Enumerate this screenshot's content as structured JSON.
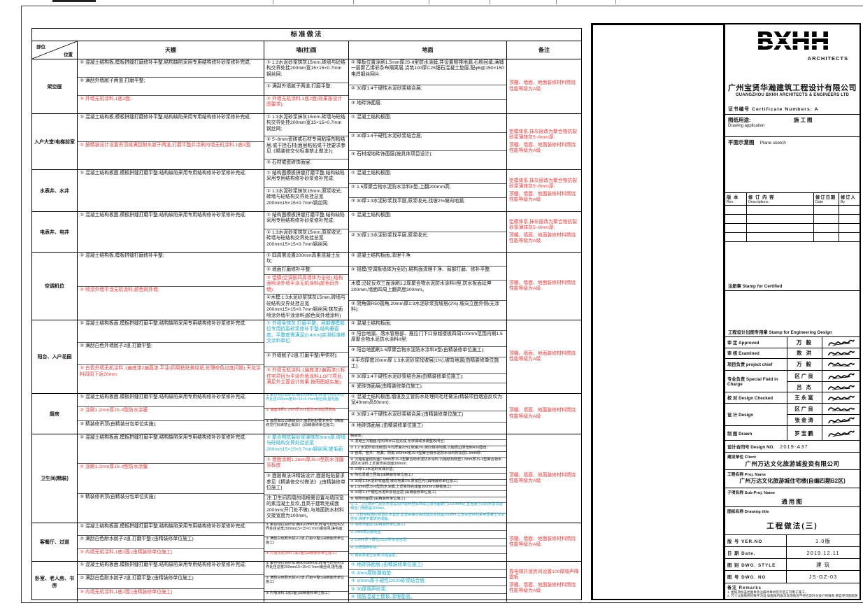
{
  "sheet": {
    "table_title": "标准做法",
    "corner_top": "部位",
    "corner_bottom": "位置",
    "columns": [
      "部位/位置",
      "天棚",
      "墙(柱)面",
      "地面",
      "备注"
    ],
    "rows": [
      {
        "location": "架空层",
        "ceiling": [
          {
            "c": "k",
            "t": "① 混凝土结构板,模板拼缝打磨修补平整,结构缺陷采用专用结构修补砂浆修补完成;"
          },
          {
            "c": "k",
            "t": "② 满刮外墙腻子两道,打磨平整;"
          },
          {
            "c": "r",
            "t": "③ 外墙无机涂料,1底2面;"
          }
        ],
        "wall": [
          {
            "c": "k",
            "t": "① 1:3水泥砂浆抹灰15mm,砖墙与砼结构交界处挂200mm宽15×15×0.7mm钢丝网;"
          },
          {
            "c": "k",
            "t": "② 满刮外墙腻子两道,打磨平整;"
          },
          {
            "c": "r",
            "t": "③ 外墙无机涂料,1底2面(效果按设计图要求);"
          }
        ],
        "floor": [
          {
            "c": "k",
            "t": "① 降板位置涂刷1.5mm厚JS-II型防水涂膜,并设置侧排地漏,石粉回填,满铺一层聚乙烯彩条布隔离层,浇筑100厚C25细石混凝土垫层,配φ6@150×150电焊钢丝网片;"
          },
          {
            "c": "k",
            "t": "② 30厚1:4干硬性水泥砂浆结合层;"
          },
          {
            "c": "k",
            "t": "③ 地砖饰面层;"
          }
        ],
        "remarks": [
          {
            "c": "r",
            "t": "顶棚、墙面、地面装修材料燃烧性能等级为A级"
          }
        ]
      },
      {
        "location": "入户大堂/电梯前室",
        "ceiling": [
          {
            "c": "k",
            "t": "① 混凝土结构板,模板拼缝打磨修补平整,结构缺陷采用专用结构修补砂浆修补完成;"
          },
          {
            "c": "r",
            "t": "② 按精装设计设置吊顶或满刮耐水腻子两道,打磨平整并涂刷内墙无机涂料,1底2面;"
          }
        ],
        "wall": [
          {
            "c": "k",
            "t": "① 1:3水泥砂浆抹灰15mm,砖墙与砼结构交界处挂200mm宽15×15×0.7mm钢丝网;"
          },
          {
            "c": "k",
            "t": "② 5~8mm瓷砖或石材专用粘接剂粘结层,或干挂石材(面层粘贴或干挂要求参见《精装修交付标准禁止做法》);"
          },
          {
            "c": "k",
            "t": "③ 石材或瓷砖饰面层;"
          }
        ],
        "floor": [
          {
            "c": "k",
            "t": "① 混凝土结构板面;"
          },
          {
            "c": "k",
            "t": "② 30厚1:4干硬性水泥砂浆结合层;"
          },
          {
            "c": "k",
            "t": "③ 石材或地砖饰面层(按具体项目设计);"
          }
        ],
        "remarks": [
          {
            "c": "r",
            "t": "铝模体系,抹灰层改为聚合物抗裂砂浆薄抹灰5~8mm厚;"
          },
          {
            "c": "r",
            "t": "顶棚、墙面、地面装修材料燃烧性能等级为A级"
          }
        ]
      },
      {
        "location": "水表井、水井",
        "ceiling": [
          {
            "c": "k",
            "t": "① 混凝土结构板面,模板拼缝打磨平整,结构缺陷采用专用结构修补砂浆修补完成;"
          }
        ],
        "wall": [
          {
            "c": "k",
            "t": "① 结构面模板拼缝打磨平整,结构缺陷采用专用结构修补砂浆修补完成;"
          },
          {
            "c": "k",
            "t": "② 1:3水泥砂浆抹灰15mm,原浆收光;砖墙与砼结构交界处挂总宽200mm15×15×0.7mm钢丝网;"
          }
        ],
        "floor": [
          {
            "c": "k",
            "t": "① 混凝土结构板面;"
          },
          {
            "c": "k",
            "t": "② 1.5厚聚合物水泥防水涂料II型,上翻200mm高;"
          },
          {
            "c": "k",
            "t": "③ 30厚1:3水泥砂浆找平层,原浆收光,找坡2%坡向地漏;"
          }
        ],
        "remarks": [
          {
            "c": "r",
            "t": "铝模体系,抹灰层改为聚合物抗裂砂浆薄抹灰5~8mm厚;"
          },
          {
            "c": "r",
            "t": "顶棚、墙面、地面装修材料燃烧性能等级为A级"
          }
        ]
      },
      {
        "location": "电表井、电井",
        "ceiling": [
          {
            "c": "k",
            "t": "① 混凝土结构板面,模板拼缝打磨平整,结构缺陷采用专用结构修补砂浆修补完成;"
          }
        ],
        "wall": [
          {
            "c": "k",
            "t": "① 结构面模板拼缝打磨平整,结构缺陷采用专用结构修补砂浆修补完成;"
          },
          {
            "c": "k",
            "t": "② 1:3水泥砂浆抹灰15mm,原浆收光;砖墙与砼结构交界处挂总宽200mm15×15×0.7mm钢丝网;"
          }
        ],
        "floor": [
          {
            "c": "k",
            "t": "① 混凝土结构板面;"
          },
          {
            "c": "k",
            "t": "② 30厚1:3水泥砂浆找平层,原浆收光;"
          }
        ],
        "remarks": [
          {
            "c": "r",
            "t": "铝模体系,抹灰层改为聚合物抗裂砂浆薄抹灰5~8mm厚;"
          },
          {
            "c": "r",
            "t": "顶棚、墙面、地面装修材料燃烧性能等级为A级"
          }
        ]
      },
      {
        "location": "空调机位",
        "ceiling": [
          {
            "c": "k",
            "t": "① 混凝土结构板,模板拼缝打磨修补平整;"
          },
          {
            "c": "r",
            "t": "② 喷涂外墙平涂无机涂料,颜色同外墙;"
          }
        ],
        "wall": [
          {
            "c": "k",
            "t": "① 四周需设置200mm高素混凝土反坎;"
          },
          {
            "c": "k",
            "t": "② 墙面打磨修补平整;"
          },
          {
            "c": "r",
            "t": "③ 铝模(空调板四周墙体为全砼),结构面喷涂外墙平涂无机涂料(颜色同外墙);"
          },
          {
            "c": "k",
            "t": "④木模:1:3水泥砂浆抹灰15mm,砖墙与砼结构交界处挂总宽200mm15×15×0.7mm钢丝网;抹灰面喷涂外墙平涂涂料(颜色同外墙涂料)"
          }
        ],
        "floor": [
          {
            "c": "k",
            "t": "① 混凝土结构板面,清理干净;"
          },
          {
            "c": "k",
            "t": "② 铝模(空调板墙体为全砼),结构面清理干净、局部打磨、修补平整;"
          },
          {
            "c": "k",
            "t": "木模:沿砼反坎三面涂刷1.2厚聚合物水泥防水涂料II型,防水板面延伸200mm,墙面四周上翻高度300mm。"
          },
          {
            "c": "k",
            "t": "③ 阴角做R50圆角,20mm厚1:3水泥砂浆找坡层(2%),坡向立面外侧(无涂料);"
          }
        ],
        "remarks": [
          {
            "c": "r",
            "t": "顶棚、墙面、地面装修材料燃烧性能等级为A级"
          }
        ]
      },
      {
        "location": "阳台、入户花园",
        "ceiling": [
          {
            "c": "k",
            "t": "① 混凝土结构板面,模板拼缝打磨平整,结构缺陷采用专用结构修补砂浆修补完成;"
          },
          {
            "c": "k",
            "t": "② 满刮白色外墙腻子2道,打磨平整;"
          },
          {
            "c": "r",
            "t": "③ 白色外墙无机涂料,1遍底漆2遍面漆,平涂(四周粘贴美纹纸,处理咬色过度问题),天花涂料四周下返20mm;"
          }
        ],
        "wall": [
          {
            "c": "b",
            "t": "① 外墙免抹灰,打磨平整、局部爆模部位专用抗裂砂浆修补平整,结构垂直度、平整度需满足[0,4mm]实测标准移交涂料单位;"
          },
          {
            "c": "k",
            "t": "② 外墙腻子2道,打磨平整(甲供材);"
          },
          {
            "c": "r",
            "t": "③ 外墙无机涂料,1遍底漆2遍面漆(C标住宅项目为平涂外墙涂料,LOFT项目,满足外立面设计效果,按照图纸实施);"
          }
        ],
        "floor": [
          {
            "c": "k",
            "t": "① 混凝土结构板面;"
          },
          {
            "c": "k",
            "t": "② 阳台地漏、落水管根部、推拉门下口穿越楼板四周100mm范围内刷1.5厚聚合物水泥防水涂料II型;"
          },
          {
            "c": "k",
            "t": "③ 阳台地面刷1.5厚聚合物水泥防水涂料II型(由精装修单位施工);"
          },
          {
            "c": "k",
            "t": "④平均厚度20mm厚 1:3水泥砂浆找坡层(1%),坡向地漏(由精装修单位施工);"
          },
          {
            "c": "k",
            "t": "⑤ 30厚1:4干硬性水泥砂浆结合层(由精装修单位施工);"
          },
          {
            "c": "k",
            "t": "⑥ 瓷砖饰面层(由精装修单位施工);"
          }
        ],
        "remarks": [
          {
            "c": "r",
            "t": "顶棚、墙面、地面装修材料燃烧性能等级为A级"
          }
        ]
      },
      {
        "location": "厨房",
        "ceiling": [
          {
            "c": "k",
            "t": "① 混凝土结构板面,模板拼缝打磨平整,结构缺陷采用专用结构修补砂浆修补完成;"
          },
          {
            "c": "r",
            "t": "② 涂刷1.2mm厚JS-II型防水涂膜"
          },
          {
            "c": "k",
            "t": "③ 精装修吊顶(由精装分包单位实施);"
          }
        ],
        "wall": [
          {
            "c": "b",
            "t": "① 聚合物抗裂砂浆薄抹灰8mm厚,砖墙与砼结构交界处挂200mm宽15×15×0.7mm钢丝网,搓毛面;"
          },
          {
            "c": "r",
            "t": "② 墙面涂刷1.2mm厚JS-II型防水涂膜至板底"
          },
          {
            "c": "k",
            "t": "③ 面层做法详精装设计,面层粘贴要求参见《精装修交付标准禁止做法》;(由精装修单位施工)"
          }
        ],
        "floor": [
          {
            "c": "k",
            "t": "① 混凝土结构板面,烟道及立管防水处理同毛坯做法(精装项目烟道反坎为:宽40mm高50mm);"
          },
          {
            "c": "k",
            "t": "② 30厚1:4干硬性水泥砂浆结合层;(由精装修单位施工)"
          },
          {
            "c": "k",
            "t": "③ 地砖饰面层;(由精装修单位施工)"
          }
        ],
        "remarks": [
          {
            "c": "r",
            "t": "顶棚、墙面、地面装修材料燃烧性能等级为A级"
          }
        ]
      },
      {
        "location": "卫生间(精装)",
        "ceiling": [
          {
            "c": "k",
            "t": "① 混凝土结构板面,模板拼缝打磨平整,结构缺陷采用专用结构修补砂浆修补完成;"
          },
          {
            "c": "r",
            "t": "② 涂刷1.2mm厚JS-II型防水涂膜"
          },
          {
            "c": "k",
            "t": "③ 精装修吊顶(由精装分包单位实施);"
          }
        ],
        "wall": [
          {
            "c": "b",
            "t": "① 聚合物抗裂砂浆薄抹灰8mm厚,砖墙与砼结构交界处挂总宽200mm15×15×0.7mm钢丝网,搓毛面;"
          },
          {
            "c": "r",
            "t": "② 墙面涂刷1.2mm厚JS-II型防水涂膜至板底"
          },
          {
            "c": "k",
            "t": "③ 面层做法详精装设计,面层粘贴要求参见《精装修交付做法》;(由精装修单位施工)"
          },
          {
            "c": "k",
            "t": "注:卫生间四周的墙根需设置与墙同宽的素混凝土反坎,且高于建筑完成面200mm(开门处不做),与地面防水材料交接宽度为100mm。"
          }
        ],
        "floor": [
          {
            "c": "k",
            "t": "精装修。"
          },
          {
            "c": "k",
            "t": "① 混凝土沉箱面,结构闭水试验完成,无渗漏或渗漏整改闭合;"
          },
          {
            "c": "k",
            "t": "② 1:2 水泥砂浆找坡层(平均厚度2cm),坡度2%,坡向侧排地漏,沉箱周边阴角倒R50圆角;"
          },
          {
            "c": "k",
            "t": "③ 管周、管井、地漏、阴角,300mm宽JS-II型聚合物水泥防水涂料附加层1.5mm厚;"
          },
          {
            "c": "k",
            "t": "④ 沉箱底面结构面1.5mm厚JS-II型聚合物水泥防水涂料;沉箱结构侧壁1.5mm厚JS-II型聚合物水泥防水涂料上反装饰完成面300mm;"
          },
          {
            "c": "k",
            "t": "⑤ 20厚1:3水泥砂浆保护层;"
          },
          {
            "c": "k",
            "t": "⑥ 陶粒混凝土回填;(由精装修单位施工)"
          },
          {
            "c": "k",
            "t": "⑦ 30厚1:3水泥砂浆面层,坡向地漏1%,原浆压光;(由精装修单位施工)"
          },
          {
            "c": "k",
            "t": "⑧ 1.5mm厚JS-II型防水涂膜,上反装饰完成面300mm;(精装施工)"
          },
          {
            "c": "k",
            "t": "⑨ 30厚1:4干硬性水泥砂浆结合层;(由精装修单位施工)"
          },
          {
            "c": "k",
            "t": "⑩ 地砖饰面层;(由精装修单位施工)"
          },
          {
            "c": "b",
            "t": "注:1、卫生间开门处防水层需向外延伸至房间或过道地面距门1500mm处,且宽度方向防水层须延伸至门两侧各200mm。"
          },
          {
            "c": "b",
            "t": "2、立管穿楼板应设置防水套管,套管高度应高出建筑完成面200mm,立管在管井处采用混凝土浇筑密实,高度平建筑完成面。"
          }
        ],
        "remarks": [
          {
            "c": "r",
            "t": "顶棚、墙面、地面装修材料燃烧性能等级为A级"
          }
        ]
      },
      {
        "location": "客餐厅、过道",
        "ceiling": [
          {
            "c": "k",
            "t": "① 混凝土结构板面,模板拼缝打磨平整,结构缺陷采用专用结构修补砂浆修补完成;"
          },
          {
            "c": "k",
            "t": "② 满刮白色耐水腻子2道,打磨平整;(由精装修单位施工)"
          },
          {
            "c": "r",
            "t": "③ 内墙无机涂料,1底2面;(由精装修单位施工)"
          }
        ],
        "wall": [
          {
            "c": "k",
            "t": "① 聚合物抗裂砂浆薄抹灰8mm厚,砖墙与砼结构交界处挂总宽200mm15×15×0.7mm钢丝网,搓毛面;"
          },
          {
            "c": "k",
            "t": "② 满刮白色耐水腻子2道,打磨平整;(由精装修单位施工)"
          },
          {
            "c": "r",
            "t": "③ 内墙无机涂料,1底2面;(由精装修单位施工)"
          }
        ],
        "floor": [
          {
            "c": "b",
            "t": "① 地砖饰面层;(由精装修单位施工)"
          },
          {
            "c": "b",
            "t": "② 2mm厚防潮地垫;"
          },
          {
            "c": "b",
            "t": "③ 10mm厚干硬性DS20砂浆结合层;"
          },
          {
            "c": "b",
            "t": "④ 30厚隔声砂浆;"
          },
          {
            "c": "b",
            "t": "⑤ 钢筋混凝土楼板,清理基层。"
          }
        ],
        "remarks": [
          {
            "c": "r",
            "t": "顶棚、墙面、地面装修材料燃烧性能等级为A级"
          }
        ]
      },
      {
        "location": "卧室、老人房、书房",
        "ceiling": [
          {
            "c": "k",
            "t": "① 混凝土结构板面,模板拼缝打磨平整,结构缺陷采用专用结构修补砂浆修补完成;"
          },
          {
            "c": "k",
            "t": "② 满刮白色耐水腻子2道,打磨平整;(由精装修单位施工)"
          },
          {
            "c": "r",
            "t": "③ 内墙无机涂料,1底2面;(由精装修单位施工)"
          }
        ],
        "wall": [
          {
            "c": "k",
            "t": "① 聚合物抗裂砂浆薄抹灰8mm厚,砖墙与砼结构交界处挂总宽200mm15×15×0.7mm钢丝网,搓毛面;"
          },
          {
            "c": "k",
            "t": "② 满刮白色耐水腻子2道,打磨平整;(由精装修单位施工)"
          },
          {
            "c": "k",
            "t": "③ 内墙涂料,1底2面;(由精装修单位施工)"
          }
        ],
        "floor": [
          {
            "c": "b",
            "t": "① 地砖饰面层;(由精装修单位施工)"
          },
          {
            "c": "b",
            "t": "② 2mm厚防潮地垫;"
          },
          {
            "c": "b",
            "t": "③ 10mm厚干硬性DS20砂浆结合层;"
          },
          {
            "c": "b",
            "t": "④ 30厚隔声砂浆;"
          },
          {
            "c": "b",
            "t": "⑤ 钢筋混凝土楼板,清理基层。"
          }
        ],
        "remarks": [
          {
            "c": "r",
            "t": "靠电梯井道房间设置100厚隔声降震板"
          },
          {
            "c": "r",
            "t": "顶棚、墙面、地面装修材料燃烧性能等级为A级"
          }
        ]
      }
    ]
  },
  "titleblock": {
    "logo_text": "BXHH",
    "logo_sub": "ARCHITECTS",
    "company_cn": "广州宝贤华瀚建筑工程设计有限公司",
    "company_en": "GUANGZHOU BXHH ARCHITECTS & ENGINEERS LTD",
    "cert_line": "证书编号 Certificate Numbers: A",
    "usage_label": "图纸用途:",
    "usage_value": "施工图",
    "usage_en": "Drawing application",
    "sketch_cn": "平面示意图",
    "sketch_en": "Plane sketch",
    "rev_headers": [
      {
        "cn": "版 本",
        "en": "Rev."
      },
      {
        "cn": "修 订 内 容",
        "en": "Descriptions"
      },
      {
        "cn": "修订日期",
        "en": "Date"
      },
      {
        "cn": "修订人",
        "en": "By"
      }
    ],
    "stamp_certified": "注册章 Stamp for Certified",
    "stamp_engineering": "工程设计出图专用章 Stamp for Engineering Design",
    "sign_rows": [
      {
        "label": "审  定 Approved",
        "names": [
          "万 毅"
        ]
      },
      {
        "label": "审  核 Examined",
        "names": [
          "敖 洪"
        ]
      },
      {
        "label": "项目负责 project chief",
        "names": [
          "万 毅"
        ]
      },
      {
        "label": "专业负责 Special Field in Charge",
        "names": [
          "区广良",
          "吕 杰"
        ]
      },
      {
        "label": "校  对 Design Checked",
        "names": [
          "王永富"
        ]
      },
      {
        "label": "设  计 Design",
        "names": [
          "区广良",
          "张金涛"
        ]
      },
      {
        "label": "制  图 Drawn",
        "names": [
          "罗宝鹏"
        ]
      }
    ],
    "contract_label": "设计合同号 Design NO.",
    "contract_value": "2019-A37",
    "client_label": "建设单位 Client",
    "client_value": "广州万达文化旅游城投资有限公司",
    "proj_label": "工程名称 Proj. Name",
    "proj_value": "广州万达文化旅游城住宅楼(自编四期B2区)",
    "subproj_label": "子项名称 Sub-Proj. Name",
    "subproj_value": "通用图",
    "title_label": "图纸名称 Drawing title",
    "title_value": "工程做法(三)",
    "ver_label": "版 号 VER.NO",
    "ver_value": "1.0版",
    "date_label": "日 期 Date.",
    "date_value": "2019.12.11",
    "style_label": "图 别 DWG. STYLE",
    "style_value": "建 筑",
    "no_label": "图 号 DWG. NO",
    "no_value": "JS-GZ-03",
    "remarks_label": "备注  Remarks",
    "remarks_lines": [
      "1. 图纸须加盖出图章及注册师章并签字后方可用于施工。",
      "2. 尺寸以图纸所标数字为准,如图纸内容与现场情况不符应及时与设计师联系,擅自更改图纸施工造成问题不负责。"
    ]
  },
  "colors": {
    "black_text": "#151515",
    "red_text": "#e03c3c",
    "blue_text": "#1ea6c9",
    "border": "#000000"
  }
}
